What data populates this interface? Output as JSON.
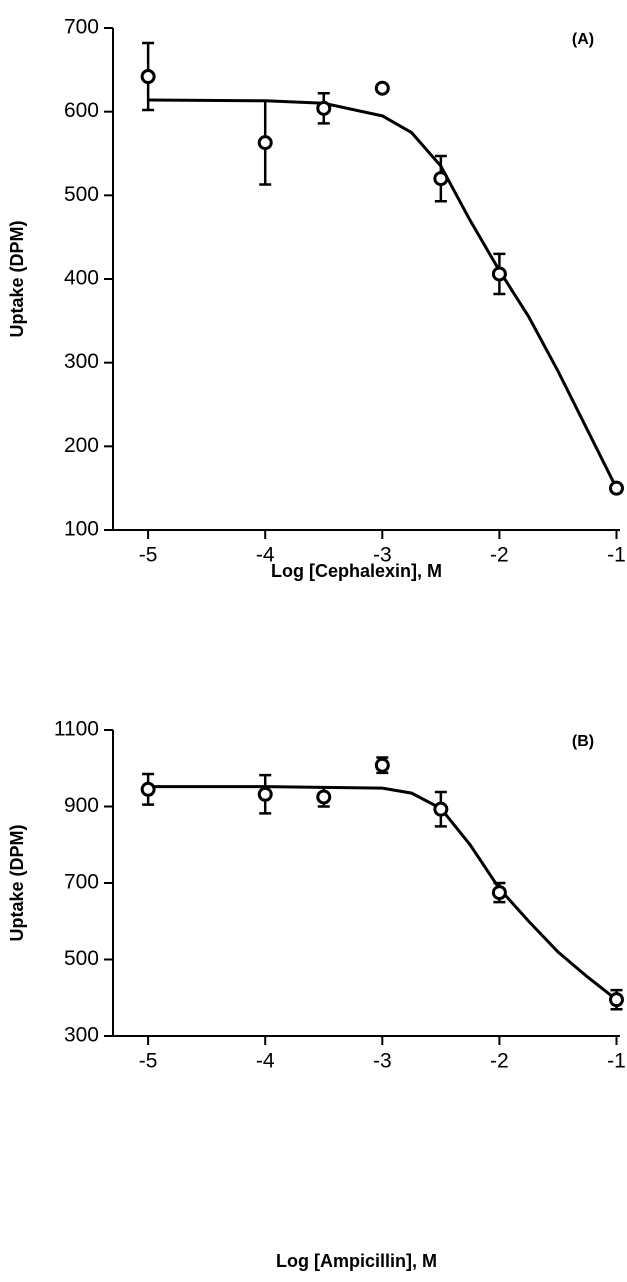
{
  "chart_data": [
    {
      "type": "scatter",
      "title": "(A)",
      "ylabel": "Uptake (DPM)",
      "xlabel": "Log [Cephalexin], M",
      "xlim": [
        -5.3,
        -0.97
      ],
      "ylim": [
        100,
        700
      ],
      "xticks": [
        -5,
        -4,
        -3,
        -2,
        -1
      ],
      "yticks": [
        100,
        200,
        300,
        400,
        500,
        600,
        700
      ],
      "color": "#000000",
      "points": {
        "x": [
          -5,
          -4,
          -3.5,
          -3,
          -2.5,
          -2,
          -1
        ],
        "values": [
          642,
          563,
          604,
          628,
          520,
          406,
          150
        ],
        "errors": [
          40,
          50,
          18,
          null,
          27,
          24,
          null
        ]
      },
      "fit": {
        "x": [
          -5,
          -4,
          -3.5,
          -3,
          -2.75,
          -2.5,
          -2.25,
          -2,
          -1.75,
          -1.5,
          -1.25,
          -1
        ],
        "values": [
          614,
          613,
          610,
          595,
          575,
          535,
          470,
          410,
          355,
          290,
          220,
          150
        ]
      }
    },
    {
      "type": "scatter",
      "title": "(B)",
      "ylabel": "Uptake (DPM)",
      "xlabel": "Log [Ampicillin], M",
      "xlim": [
        -5.3,
        -0.97
      ],
      "ylim": [
        300,
        1100
      ],
      "xticks": [
        -5,
        -4,
        -3,
        -2,
        -1
      ],
      "yticks": [
        300,
        500,
        700,
        900,
        1100
      ],
      "color": "#000000",
      "points": {
        "x": [
          -5,
          -4,
          -3.5,
          -3,
          -2.5,
          -2,
          -1
        ],
        "values": [
          945,
          932,
          925,
          1008,
          893,
          675,
          395
        ],
        "errors": [
          40,
          50,
          25,
          20,
          45,
          25,
          25
        ]
      },
      "fit": {
        "x": [
          -5,
          -4,
          -3.5,
          -3,
          -2.75,
          -2.5,
          -2.25,
          -2,
          -1.75,
          -1.5,
          -1.25,
          -1
        ],
        "values": [
          952,
          952,
          950,
          948,
          935,
          895,
          800,
          685,
          600,
          520,
          455,
          395
        ]
      }
    }
  ]
}
